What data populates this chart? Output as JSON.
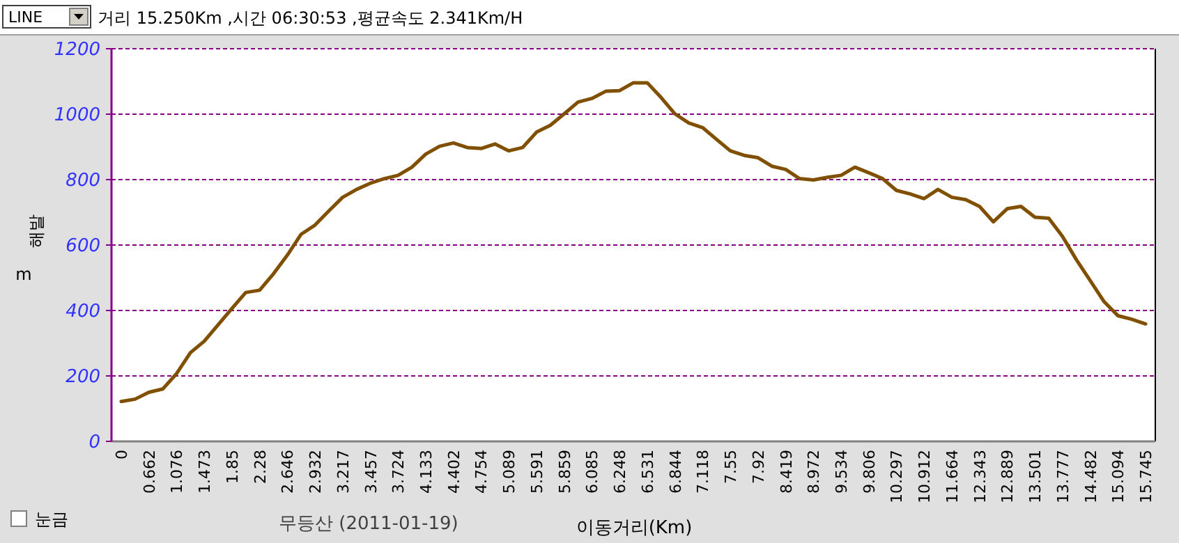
{
  "chart_data": {
    "type": "line",
    "title": "무등산 (2011-01-19)",
    "subtitle": "거리 15.250Km ,시간 06:30:53 ,평균속도 2.341Km/H",
    "xlabel": "이동거리(Km)",
    "ylabel": "해발 m",
    "annotations": [
      "LINE",
      "눈금"
    ],
    "categories": [
      "0",
      null,
      "0.662",
      null,
      "1.076",
      null,
      "1.473",
      null,
      "1.85",
      null,
      "2.28",
      null,
      "2.646",
      null,
      "2.932",
      null,
      "3.217",
      null,
      "3.457",
      null,
      "3.724",
      null,
      "4.133",
      null,
      "4.402",
      null,
      "4.754",
      null,
      "5.089",
      null,
      "5.591",
      null,
      "5.859",
      null,
      "6.085",
      null,
      "6.248",
      null,
      "6.531",
      null,
      "6.844",
      null,
      "7.118",
      null,
      "7.55",
      null,
      "7.92",
      null,
      "8.419",
      null,
      "8.972",
      null,
      "9.534",
      null,
      "9.806",
      null,
      "10.297",
      null,
      "10.912",
      null,
      "11.664",
      null,
      "12.343",
      null,
      "12.889",
      null,
      "13.501",
      null,
      "13.777",
      null,
      "14.482",
      null,
      "15.094",
      null,
      "15.745"
    ],
    "series": [
      {
        "color": "#805000",
        "values": [
          122,
          129,
          150,
          160,
          207,
          271,
          306,
          356,
          406,
          455,
          462,
          512,
          569,
          633,
          661,
          704,
          746,
          770,
          789,
          803,
          813,
          838,
          878,
          902,
          912,
          898,
          895,
          909,
          888,
          898,
          945,
          966,
          1001,
          1037,
          1048,
          1070,
          1072,
          1096,
          1096,
          1051,
          1001,
          973,
          959,
          923,
          888,
          874,
          867,
          841,
          831,
          803,
          799,
          807,
          813,
          838,
          821,
          803,
          767,
          756,
          742,
          770,
          746,
          739,
          718,
          671,
          711,
          718,
          685,
          682,
          626,
          555,
          491,
          427,
          384,
          373,
          359
        ]
      }
    ],
    "ylim": [
      0,
      1200
    ],
    "yticks": [
      0,
      200,
      400,
      600,
      800,
      1000,
      1200
    ],
    "grid": "y",
    "line_style": "solid",
    "marker": "none"
  }
}
